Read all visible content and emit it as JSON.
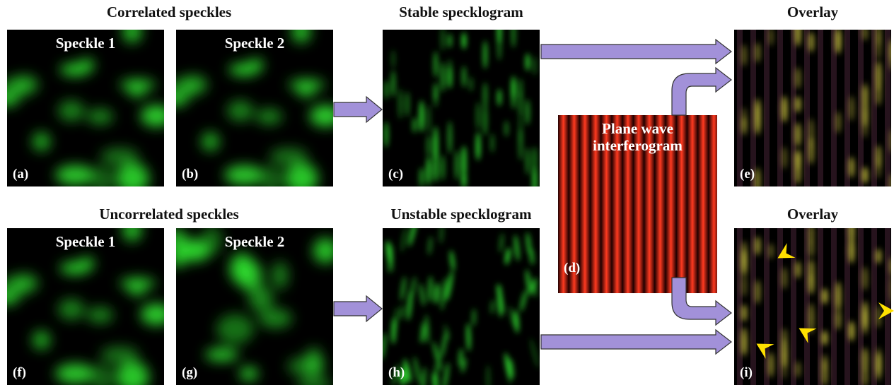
{
  "headers": [
    "Correlated speckles",
    "Stable specklogram",
    "Overlay",
    "Uncorrelated speckles",
    "Unstable specklogram",
    "Overlay"
  ],
  "panels": [
    {
      "tag": "(a)",
      "caption": "Speckle 1"
    },
    {
      "tag": "(b)",
      "caption": "Speckle 2"
    },
    {
      "tag": "(c)"
    },
    {
      "tag": "(e)"
    },
    {
      "tag": "(f)",
      "caption": "Speckle 1"
    },
    {
      "tag": "(g)",
      "caption": "Speckle 2"
    },
    {
      "tag": "(h)"
    },
    {
      "tag": "(i)"
    }
  ],
  "interferogram": {
    "tag": "(d)",
    "title_lines": [
      "Plane wave",
      "interferogram"
    ]
  }
}
